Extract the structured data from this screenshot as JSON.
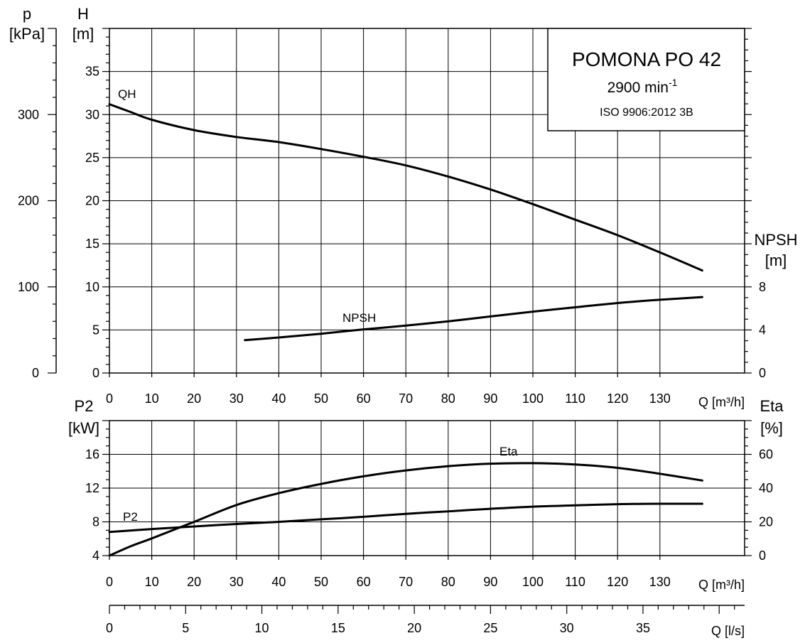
{
  "title_box": {
    "model": "POMONA PO 42",
    "speed_value": "2900 min",
    "speed_exp": "-1",
    "standard": "ISO 9906:2012 3B"
  },
  "chart_data": [
    {
      "type": "line",
      "name": "head-npsh-panel",
      "xlabel": "Q [m³/h]",
      "xlim": [
        0,
        150
      ],
      "x_ticks": [
        0,
        10,
        20,
        30,
        40,
        50,
        60,
        70,
        80,
        90,
        100,
        110,
        120,
        130
      ],
      "axes": {
        "left_p": {
          "label_top": "p",
          "label_unit": "[kPa]",
          "lim": [
            0,
            400
          ],
          "ticks": [
            0,
            100,
            200,
            300
          ]
        },
        "left_h": {
          "label_top": "H",
          "label_unit": "[m]",
          "lim": [
            0,
            40
          ],
          "ticks": [
            0,
            5,
            10,
            15,
            20,
            25,
            30,
            35
          ]
        },
        "right_npsh": {
          "label_top": "NPSH",
          "label_unit": "[m]",
          "lim": [
            0,
            32
          ],
          "ticks": [
            0,
            4,
            8
          ]
        }
      },
      "grid": true,
      "series": [
        {
          "name": "QH",
          "axis": "left_h",
          "x": [
            0,
            5,
            10,
            20,
            30,
            40,
            50,
            60,
            70,
            80,
            90,
            100,
            110,
            120,
            130,
            140
          ],
          "y": [
            31.2,
            30.3,
            29.4,
            28.2,
            27.4,
            26.8,
            26.0,
            25.1,
            24.1,
            22.8,
            21.3,
            19.6,
            17.8,
            16.0,
            14.0,
            11.9
          ]
        },
        {
          "name": "NPSH",
          "axis": "right_npsh",
          "x": [
            32,
            40,
            50,
            60,
            70,
            80,
            90,
            100,
            110,
            120,
            130,
            140
          ],
          "y": [
            3.05,
            3.3,
            3.65,
            4.05,
            4.4,
            4.8,
            5.25,
            5.7,
            6.1,
            6.5,
            6.8,
            7.05
          ]
        }
      ]
    },
    {
      "type": "line",
      "name": "power-efficiency-panel",
      "xlabel": "Q [m³/h]",
      "xlim": [
        0,
        150
      ],
      "x_ticks": [
        0,
        10,
        20,
        30,
        40,
        50,
        60,
        70,
        80,
        90,
        100,
        110,
        120,
        130
      ],
      "axes": {
        "left_p2": {
          "label_top": "P2",
          "label_unit": "[kW]",
          "lim": [
            4,
            20
          ],
          "ticks": [
            4,
            8,
            12,
            16
          ]
        },
        "right_eta": {
          "label_top": "Eta",
          "label_unit": "[%]",
          "lim": [
            0,
            80
          ],
          "ticks": [
            0,
            20,
            40,
            60
          ]
        }
      },
      "grid": true,
      "series": [
        {
          "name": "Eta",
          "axis": "right_eta",
          "x": [
            0,
            5,
            10,
            20,
            30,
            40,
            50,
            60,
            70,
            80,
            90,
            100,
            110,
            120,
            130,
            140
          ],
          "y": [
            0,
            5.5,
            10.2,
            20,
            30,
            37,
            42.5,
            47,
            50.5,
            53,
            54.5,
            54.8,
            54,
            52,
            48.5,
            44.5
          ]
        },
        {
          "name": "P2",
          "axis": "left_p2",
          "x": [
            0,
            10,
            20,
            30,
            40,
            50,
            60,
            70,
            80,
            90,
            100,
            110,
            120,
            130,
            140
          ],
          "y": [
            6.8,
            7.15,
            7.45,
            7.75,
            8.0,
            8.3,
            8.6,
            8.95,
            9.25,
            9.55,
            9.8,
            9.95,
            10.1,
            10.15,
            10.15
          ]
        }
      ]
    },
    {
      "type": "axis",
      "name": "flow-liters-scale",
      "xlabel": "Q [l/s]",
      "xlim": [
        0,
        41.667
      ],
      "ticks": [
        0,
        5,
        10,
        15,
        20,
        25,
        30,
        35
      ],
      "minor_step": 1
    }
  ]
}
